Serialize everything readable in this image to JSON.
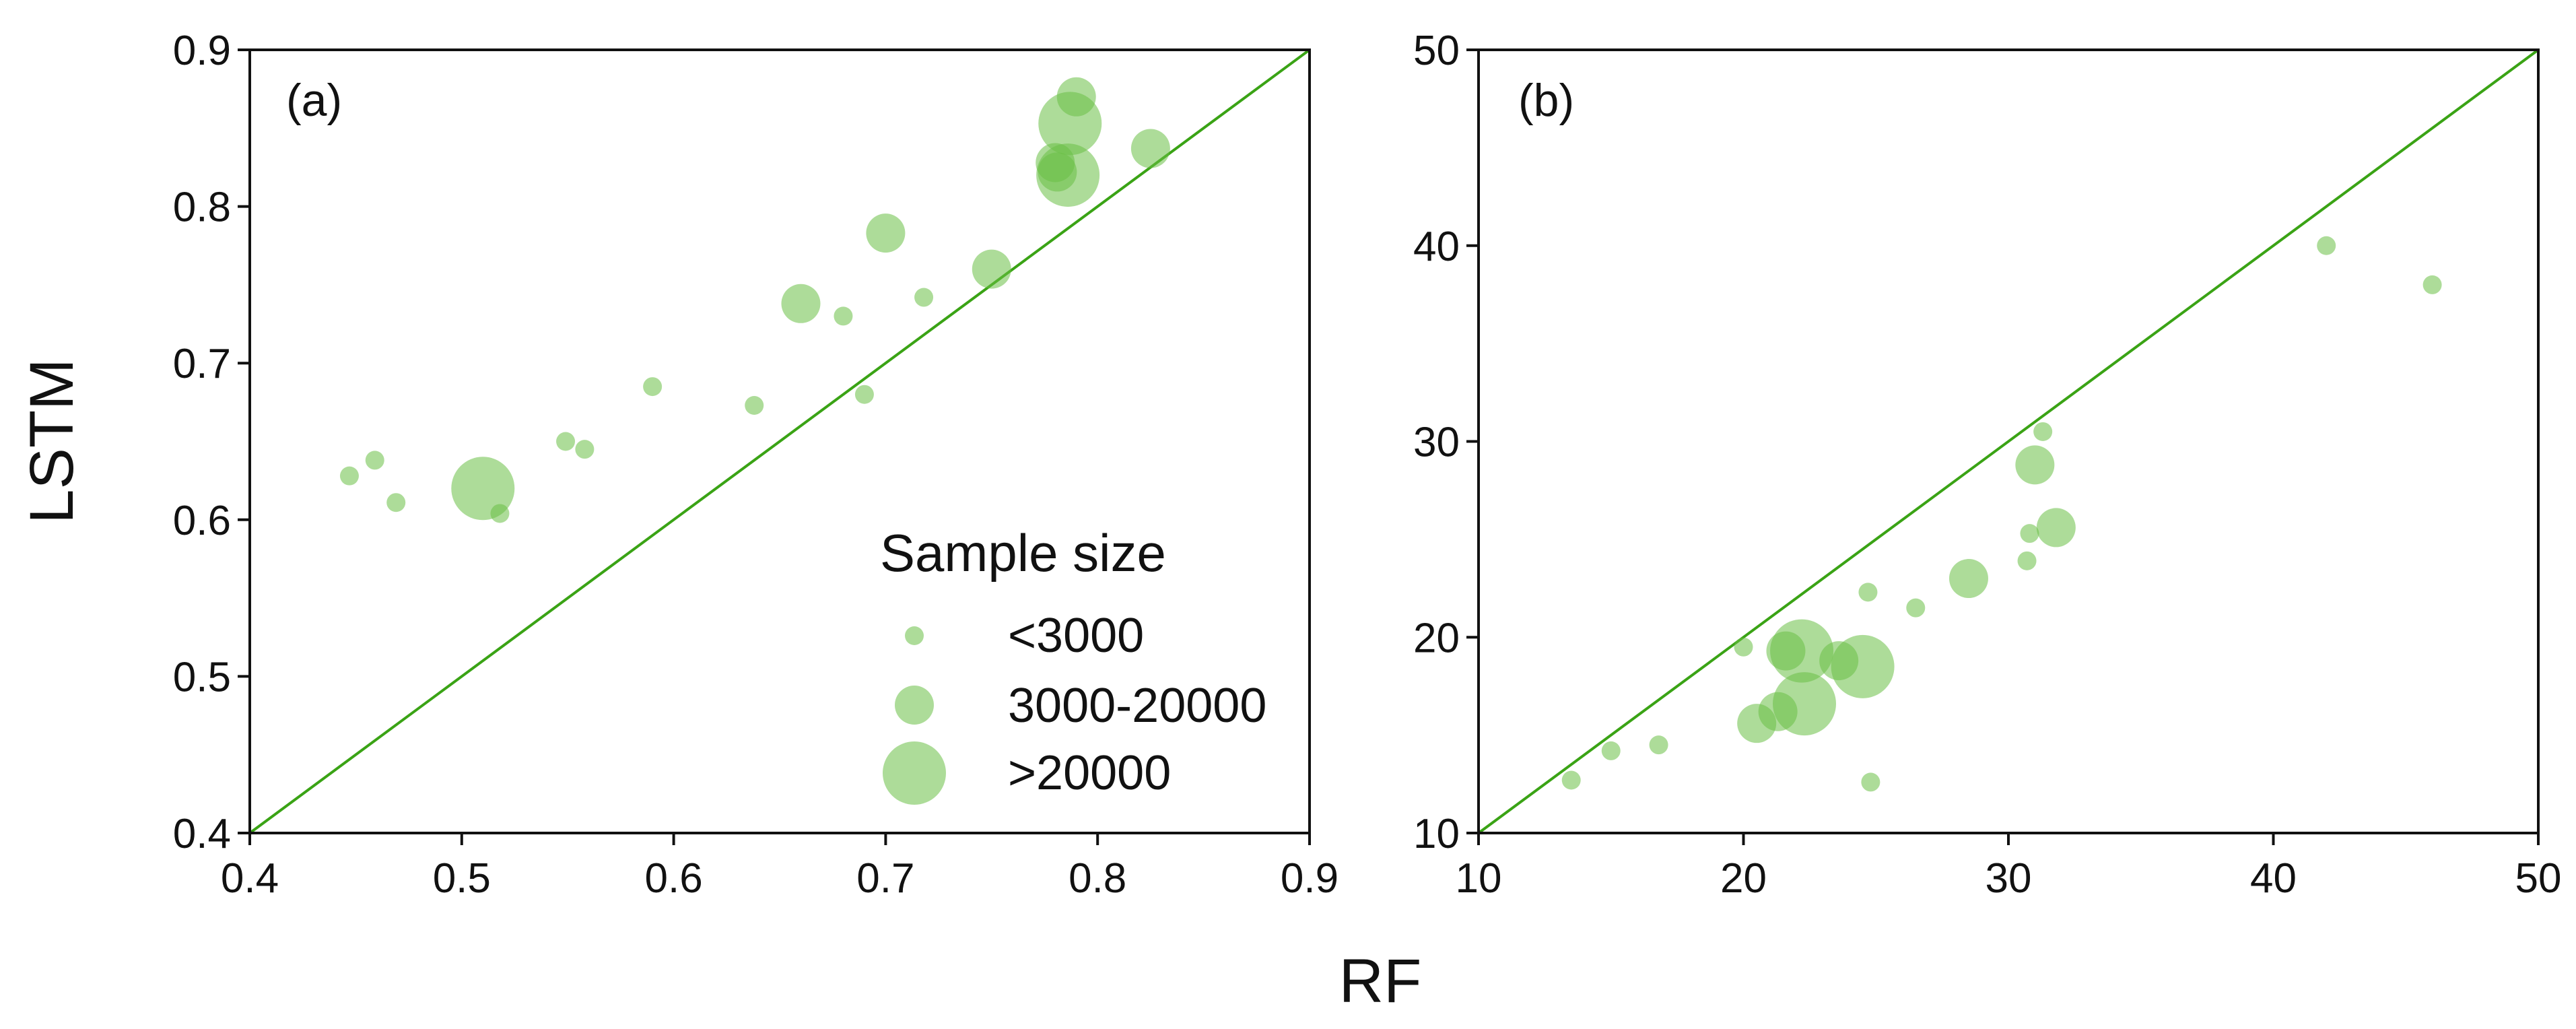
{
  "chart_data": [
    {
      "type": "scatter",
      "panel": "(a)",
      "xlabel": "RF",
      "ylabel": "LSTM",
      "xlim": [
        0.4,
        0.9
      ],
      "ylim": [
        0.4,
        0.9
      ],
      "xticks": [
        "0.4",
        "0.5",
        "0.6",
        "0.7",
        "0.8",
        "0.9"
      ],
      "yticks": [
        "0.4",
        "0.5",
        "0.6",
        "0.7",
        "0.8",
        "0.9"
      ],
      "reference_line": "1:1",
      "legend_position": "bottom-right",
      "points": [
        {
          "x": 0.447,
          "y": 0.628,
          "size": "<3000"
        },
        {
          "x": 0.459,
          "y": 0.638,
          "size": "<3000"
        },
        {
          "x": 0.469,
          "y": 0.611,
          "size": "<3000"
        },
        {
          "x": 0.51,
          "y": 0.62,
          "size": ">20000"
        },
        {
          "x": 0.518,
          "y": 0.604,
          "size": "<3000"
        },
        {
          "x": 0.549,
          "y": 0.65,
          "size": "<3000"
        },
        {
          "x": 0.558,
          "y": 0.645,
          "size": "<3000"
        },
        {
          "x": 0.59,
          "y": 0.685,
          "size": "<3000"
        },
        {
          "x": 0.638,
          "y": 0.673,
          "size": "<3000"
        },
        {
          "x": 0.66,
          "y": 0.738,
          "size": "3000-20000"
        },
        {
          "x": 0.68,
          "y": 0.73,
          "size": "<3000"
        },
        {
          "x": 0.69,
          "y": 0.68,
          "size": "<3000"
        },
        {
          "x": 0.7,
          "y": 0.783,
          "size": "3000-20000"
        },
        {
          "x": 0.718,
          "y": 0.742,
          "size": "<3000"
        },
        {
          "x": 0.75,
          "y": 0.76,
          "size": "3000-20000"
        },
        {
          "x": 0.78,
          "y": 0.828,
          "size": "3000-20000"
        },
        {
          "x": 0.781,
          "y": 0.822,
          "size": "3000-20000"
        },
        {
          "x": 0.786,
          "y": 0.82,
          "size": ">20000"
        },
        {
          "x": 0.787,
          "y": 0.853,
          "size": ">20000"
        },
        {
          "x": 0.79,
          "y": 0.87,
          "size": "3000-20000"
        },
        {
          "x": 0.825,
          "y": 0.837,
          "size": "3000-20000"
        }
      ]
    },
    {
      "type": "scatter",
      "panel": "(b)",
      "xlabel": "RF",
      "ylabel": "LSTM",
      "xlim": [
        10,
        50
      ],
      "ylim": [
        10,
        50
      ],
      "xticks": [
        "10",
        "20",
        "30",
        "40",
        "50"
      ],
      "yticks": [
        "10",
        "20",
        "30",
        "40",
        "50"
      ],
      "reference_line": "1:1",
      "points": [
        {
          "x": 13.5,
          "y": 12.7,
          "size": "<3000"
        },
        {
          "x": 15.0,
          "y": 14.2,
          "size": "<3000"
        },
        {
          "x": 16.8,
          "y": 14.5,
          "size": "<3000"
        },
        {
          "x": 20.0,
          "y": 19.5,
          "size": "<3000"
        },
        {
          "x": 20.5,
          "y": 15.6,
          "size": "3000-20000"
        },
        {
          "x": 21.3,
          "y": 16.2,
          "size": "3000-20000"
        },
        {
          "x": 21.6,
          "y": 19.3,
          "size": "3000-20000"
        },
        {
          "x": 22.2,
          "y": 19.3,
          "size": ">20000"
        },
        {
          "x": 22.3,
          "y": 16.6,
          "size": ">20000"
        },
        {
          "x": 23.6,
          "y": 18.8,
          "size": "3000-20000"
        },
        {
          "x": 24.5,
          "y": 18.5,
          "size": ">20000"
        },
        {
          "x": 24.7,
          "y": 22.3,
          "size": "<3000"
        },
        {
          "x": 24.8,
          "y": 12.6,
          "size": "<3000"
        },
        {
          "x": 26.5,
          "y": 21.5,
          "size": "<3000"
        },
        {
          "x": 28.5,
          "y": 23.0,
          "size": "3000-20000"
        },
        {
          "x": 30.7,
          "y": 23.9,
          "size": "<3000"
        },
        {
          "x": 30.8,
          "y": 25.3,
          "size": "<3000"
        },
        {
          "x": 31.0,
          "y": 28.8,
          "size": "3000-20000"
        },
        {
          "x": 31.3,
          "y": 30.5,
          "size": "<3000"
        },
        {
          "x": 31.8,
          "y": 25.6,
          "size": "3000-20000"
        },
        {
          "x": 42.0,
          "y": 40.0,
          "size": "<3000"
        },
        {
          "x": 46.0,
          "y": 38.0,
          "size": "<3000"
        }
      ]
    }
  ],
  "legend": {
    "title": "Sample size",
    "entries": [
      "<3000",
      "3000-20000",
      ">20000"
    ]
  },
  "axes": {
    "shared_xlabel": "RF",
    "shared_ylabel": "LSTM"
  },
  "colors": {
    "point_fill": "#6abf45",
    "point_opacity": 0.55,
    "reference_line": "#3aa315",
    "axis": "#111111"
  }
}
